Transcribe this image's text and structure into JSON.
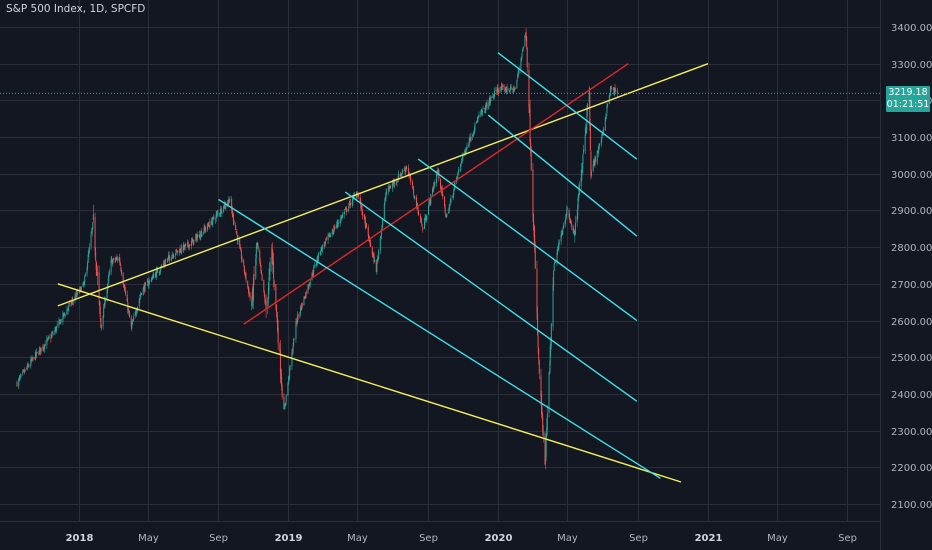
{
  "chart_data": {
    "type": "candlestick",
    "title": "S&P 500 Index, 1D, SPCFD",
    "y_ticks": [
      "2100.00",
      "2200.00",
      "2300.00",
      "2400.00",
      "2500.00",
      "2600.00",
      "2700.00",
      "2800.00",
      "2900.00",
      "3000.00",
      "3100.00",
      "3200.00",
      "3300.00",
      "3400.00"
    ],
    "ylim": [
      2040,
      3460
    ],
    "x_ticks": [
      {
        "label": "2018",
        "date": "2018-01-01",
        "bold": true
      },
      {
        "label": "May",
        "date": "2018-05-01",
        "bold": false
      },
      {
        "label": "Sep",
        "date": "2018-09-01",
        "bold": false
      },
      {
        "label": "2019",
        "date": "2019-01-01",
        "bold": true
      },
      {
        "label": "May",
        "date": "2019-05-01",
        "bold": false
      },
      {
        "label": "Sep",
        "date": "2019-09-01",
        "bold": false
      },
      {
        "label": "2020",
        "date": "2020-01-01",
        "bold": true
      },
      {
        "label": "May",
        "date": "2020-05-01",
        "bold": false
      },
      {
        "label": "Sep",
        "date": "2020-09-01",
        "bold": false
      },
      {
        "label": "2021",
        "date": "2021-01-01",
        "bold": true
      },
      {
        "label": "May",
        "date": "2021-05-01",
        "bold": false
      },
      {
        "label": "Sep",
        "date": "2021-09-01",
        "bold": false
      }
    ],
    "last_price": "3219.18",
    "countdown": "01:21:51",
    "colors": {
      "background": "#131722",
      "grid": "#2a2e39",
      "up": "#26a69a",
      "down": "#ef5350",
      "yellow_line": "#f5f057",
      "red_line": "#e02828",
      "cyan_line": "#3ee0e8",
      "text": "#b2b5be"
    },
    "price_path": [
      [
        "2017-09-15",
        2430
      ],
      [
        "2017-10-15",
        2500
      ],
      [
        "2017-11-15",
        2560
      ],
      [
        "2017-12-15",
        2640
      ],
      [
        "2018-01-10",
        2700
      ],
      [
        "2018-01-26",
        2870
      ],
      [
        "2018-02-08",
        2580
      ],
      [
        "2018-02-26",
        2760
      ],
      [
        "2018-03-12",
        2770
      ],
      [
        "2018-04-02",
        2580
      ],
      [
        "2018-04-20",
        2680
      ],
      [
        "2018-05-10",
        2720
      ],
      [
        "2018-06-12",
        2780
      ],
      [
        "2018-07-15",
        2810
      ],
      [
        "2018-08-15",
        2860
      ],
      [
        "2018-09-20",
        2930
      ],
      [
        "2018-10-10",
        2780
      ],
      [
        "2018-10-29",
        2640
      ],
      [
        "2018-11-07",
        2810
      ],
      [
        "2018-11-23",
        2630
      ],
      [
        "2018-12-03",
        2790
      ],
      [
        "2018-12-24",
        2350
      ],
      [
        "2019-01-15",
        2600
      ],
      [
        "2019-02-25",
        2790
      ],
      [
        "2019-04-15",
        2910
      ],
      [
        "2019-05-01",
        2950
      ],
      [
        "2019-06-03",
        2740
      ],
      [
        "2019-06-20",
        2950
      ],
      [
        "2019-07-26",
        3020
      ],
      [
        "2019-08-23",
        2850
      ],
      [
        "2019-09-18",
        3010
      ],
      [
        "2019-10-03",
        2880
      ],
      [
        "2019-10-30",
        3040
      ],
      [
        "2019-11-27",
        3150
      ],
      [
        "2019-12-31",
        3230
      ],
      [
        "2020-01-31",
        3230
      ],
      [
        "2020-02-19",
        3390
      ],
      [
        "2020-03-01",
        2950
      ],
      [
        "2020-03-12",
        2480
      ],
      [
        "2020-03-23",
        2200
      ],
      [
        "2020-04-08",
        2750
      ],
      [
        "2020-04-30",
        2900
      ],
      [
        "2020-05-14",
        2830
      ],
      [
        "2020-06-08",
        3230
      ],
      [
        "2020-06-11",
        3000
      ],
      [
        "2020-06-30",
        3100
      ],
      [
        "2020-07-15",
        3230
      ],
      [
        "2020-07-28",
        3219
      ]
    ],
    "trendlines": [
      {
        "color": "yellow",
        "from": [
          "2017-11-25",
          2700
        ],
        "to": [
          "2020-11-15",
          2160
        ]
      },
      {
        "color": "yellow",
        "from": [
          "2017-11-25",
          2640
        ],
        "to": [
          "2021-01-01",
          3300
        ]
      },
      {
        "color": "red",
        "from": [
          "2018-10-15",
          2590
        ],
        "to": [
          "2020-08-15",
          3300
        ]
      },
      {
        "color": "cyan",
        "from": [
          "2018-09-01",
          2930
        ],
        "to": [
          "2020-10-10",
          2170
        ]
      },
      {
        "color": "cyan",
        "from": [
          "2019-04-10",
          2950
        ],
        "to": [
          "2020-08-30",
          2380
        ]
      },
      {
        "color": "cyan",
        "from": [
          "2019-08-15",
          3040
        ],
        "to": [
          "2020-08-30",
          2600
        ]
      },
      {
        "color": "cyan",
        "from": [
          "2019-12-15",
          3160
        ],
        "to": [
          "2020-08-30",
          2830
        ]
      },
      {
        "color": "cyan",
        "from": [
          "2020-01-01",
          3330
        ],
        "to": [
          "2020-08-30",
          3040
        ]
      }
    ]
  }
}
